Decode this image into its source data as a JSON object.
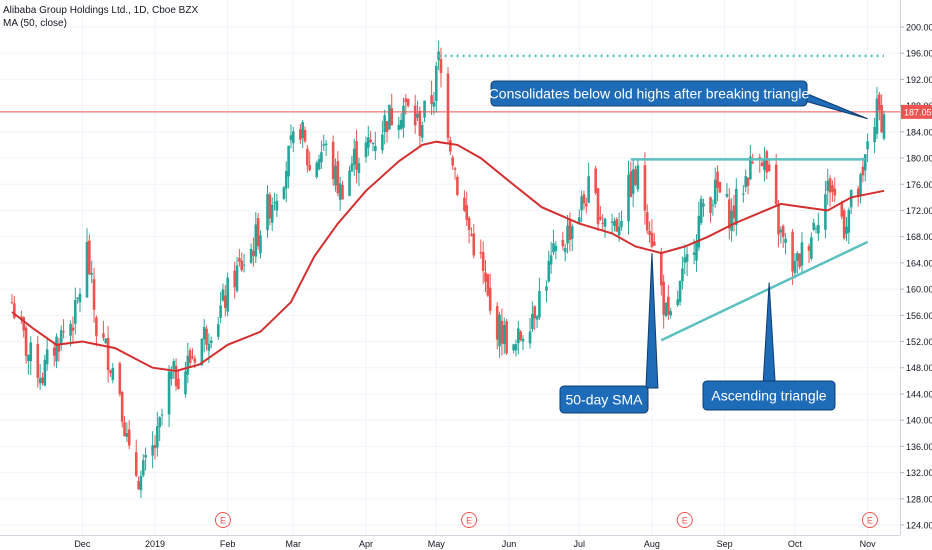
{
  "legend": {
    "symbol_line": "Alibaba Group Holdings Ltd., 1D, Cboe BZX",
    "indicator_line": "MA (50, close)"
  },
  "chart_data": {
    "type": "candlestick",
    "title": "Alibaba Group Holdings Ltd., 1D, Cboe BZX",
    "indicator": "MA (50, close)",
    "ylim": [
      123,
      202
    ],
    "y_ticks": [
      124,
      128,
      132,
      136,
      140,
      144,
      148,
      152,
      156,
      160,
      164,
      168,
      172,
      176,
      180,
      184,
      188,
      192,
      196,
      200
    ],
    "x_ticks": [
      "Dec",
      "2019",
      "Feb",
      "Mar",
      "Apr",
      "May",
      "Jun",
      "Jul",
      "Aug",
      "Sep",
      "Oct",
      "Nov"
    ],
    "x_tick_dates": [
      "2018-12-01",
      "2019-01-01",
      "2019-02-01",
      "2019-03-01",
      "2019-04-01",
      "2019-05-01",
      "2019-06-01",
      "2019-07-01",
      "2019-08-01",
      "2019-09-01",
      "2019-10-01",
      "2019-11-01"
    ],
    "date_range": [
      "2018-11-01",
      "2019-11-08"
    ],
    "price_label": "187.05",
    "price_value": 187.05,
    "colors": {
      "up": "#26a69a",
      "down": "#ef5350",
      "ma": "#d32f2f",
      "annotation": "#5bc0c0",
      "callout": "#1e6bb8",
      "price_line": "#ef5350"
    },
    "price_path": [
      [
        "2018-11-01",
        158
      ],
      [
        "2018-11-08",
        150
      ],
      [
        "2018-11-14",
        147
      ],
      [
        "2018-11-20",
        152
      ],
      [
        "2018-11-28",
        156
      ],
      [
        "2018-12-03",
        166
      ],
      [
        "2018-12-07",
        154
      ],
      [
        "2018-12-12",
        150
      ],
      [
        "2018-12-17",
        145
      ],
      [
        "2018-12-21",
        134
      ],
      [
        "2018-12-26",
        131
      ],
      [
        "2019-01-02",
        137
      ],
      [
        "2019-01-07",
        146
      ],
      [
        "2019-01-14",
        148
      ],
      [
        "2019-01-22",
        153
      ],
      [
        "2019-01-28",
        156
      ],
      [
        "2019-02-04",
        162
      ],
      [
        "2019-02-11",
        166
      ],
      [
        "2019-02-19",
        173
      ],
      [
        "2019-02-25",
        178
      ],
      [
        "2019-03-04",
        185
      ],
      [
        "2019-03-08",
        178
      ],
      [
        "2019-03-14",
        182
      ],
      [
        "2019-03-21",
        175
      ],
      [
        "2019-03-27",
        180
      ],
      [
        "2019-04-03",
        182
      ],
      [
        "2019-04-10",
        186
      ],
      [
        "2019-04-17",
        188
      ],
      [
        "2019-04-24",
        185
      ],
      [
        "2019-04-30",
        190
      ],
      [
        "2019-05-02",
        195
      ],
      [
        "2019-05-06",
        185
      ],
      [
        "2019-05-10",
        176
      ],
      [
        "2019-05-14",
        170
      ],
      [
        "2019-05-20",
        164
      ],
      [
        "2019-05-24",
        156
      ],
      [
        "2019-05-30",
        153
      ],
      [
        "2019-06-03",
        150
      ],
      [
        "2019-06-07",
        154
      ],
      [
        "2019-06-13",
        158
      ],
      [
        "2019-06-19",
        164
      ],
      [
        "2019-06-25",
        168
      ],
      [
        "2019-07-01",
        172
      ],
      [
        "2019-07-05",
        175
      ],
      [
        "2019-07-11",
        171
      ],
      [
        "2019-07-17",
        170
      ],
      [
        "2019-07-23",
        176
      ],
      [
        "2019-07-26",
        177
      ],
      [
        "2019-07-31",
        170
      ],
      [
        "2019-08-05",
        160
      ],
      [
        "2019-08-08",
        154
      ],
      [
        "2019-08-13",
        160
      ],
      [
        "2019-08-19",
        168
      ],
      [
        "2019-08-23",
        173
      ],
      [
        "2019-08-29",
        175
      ],
      [
        "2019-09-04",
        171
      ],
      [
        "2019-09-10",
        177
      ],
      [
        "2019-09-16",
        182
      ],
      [
        "2019-09-20",
        176
      ],
      [
        "2019-09-25",
        168
      ],
      [
        "2019-10-01",
        163
      ],
      [
        "2019-10-07",
        168
      ],
      [
        "2019-10-11",
        172
      ],
      [
        "2019-10-16",
        176
      ],
      [
        "2019-10-22",
        170
      ],
      [
        "2019-10-25",
        173
      ],
      [
        "2019-10-30",
        176
      ],
      [
        "2019-11-01",
        183
      ],
      [
        "2019-11-05",
        187
      ],
      [
        "2019-11-08",
        186
      ]
    ],
    "ma50_path": [
      [
        "2018-11-01",
        156.5
      ],
      [
        "2018-11-10",
        154
      ],
      [
        "2018-11-20",
        151.5
      ],
      [
        "2018-12-01",
        152
      ],
      [
        "2018-12-15",
        151
      ],
      [
        "2018-12-31",
        148
      ],
      [
        "2019-01-10",
        147.5
      ],
      [
        "2019-01-20",
        148.5
      ],
      [
        "2019-02-01",
        151.5
      ],
      [
        "2019-02-15",
        153.5
      ],
      [
        "2019-02-28",
        158
      ],
      [
        "2019-03-10",
        165
      ],
      [
        "2019-03-20",
        170
      ],
      [
        "2019-04-01",
        175
      ],
      [
        "2019-04-15",
        179.5
      ],
      [
        "2019-04-25",
        182
      ],
      [
        "2019-05-01",
        182.5
      ],
      [
        "2019-05-10",
        182
      ],
      [
        "2019-05-20",
        180
      ],
      [
        "2019-06-01",
        176.5
      ],
      [
        "2019-06-15",
        172.5
      ],
      [
        "2019-07-01",
        170
      ],
      [
        "2019-07-15",
        168.5
      ],
      [
        "2019-07-25",
        166.5
      ],
      [
        "2019-08-05",
        165.5
      ],
      [
        "2019-08-15",
        166.5
      ],
      [
        "2019-08-25",
        168
      ],
      [
        "2019-09-05",
        170
      ],
      [
        "2019-09-15",
        171.5
      ],
      [
        "2019-09-25",
        173
      ],
      [
        "2019-10-05",
        172.5
      ],
      [
        "2019-10-15",
        172
      ],
      [
        "2019-10-25",
        174
      ],
      [
        "2019-11-08",
        175
      ]
    ],
    "annotations": {
      "old_high_line": {
        "from": "2019-05-02",
        "to": "2019-11-08",
        "y": 195.6
      },
      "triangle_top": {
        "from": "2019-07-23",
        "to": "2019-10-31",
        "y": 179.8
      },
      "triangle_bottom": {
        "from": [
          "2019-08-05",
          152.2
        ],
        "to": [
          "2019-11-01",
          167.2
        ]
      },
      "callouts": [
        {
          "text": "Consolidates below old highs after breaking triangle",
          "target": [
            "2019-11-01",
            186
          ]
        },
        {
          "text": "50-day SMA",
          "target": [
            "2019-08-01",
            165.5
          ]
        },
        {
          "text": "Ascending triangle",
          "target": [
            "2019-09-20",
            161
          ]
        }
      ]
    },
    "earnings_markers": {
      "label": "E",
      "dates": [
        "2019-01-30",
        "2019-05-15",
        "2019-08-15",
        "2019-11-02"
      ]
    }
  }
}
